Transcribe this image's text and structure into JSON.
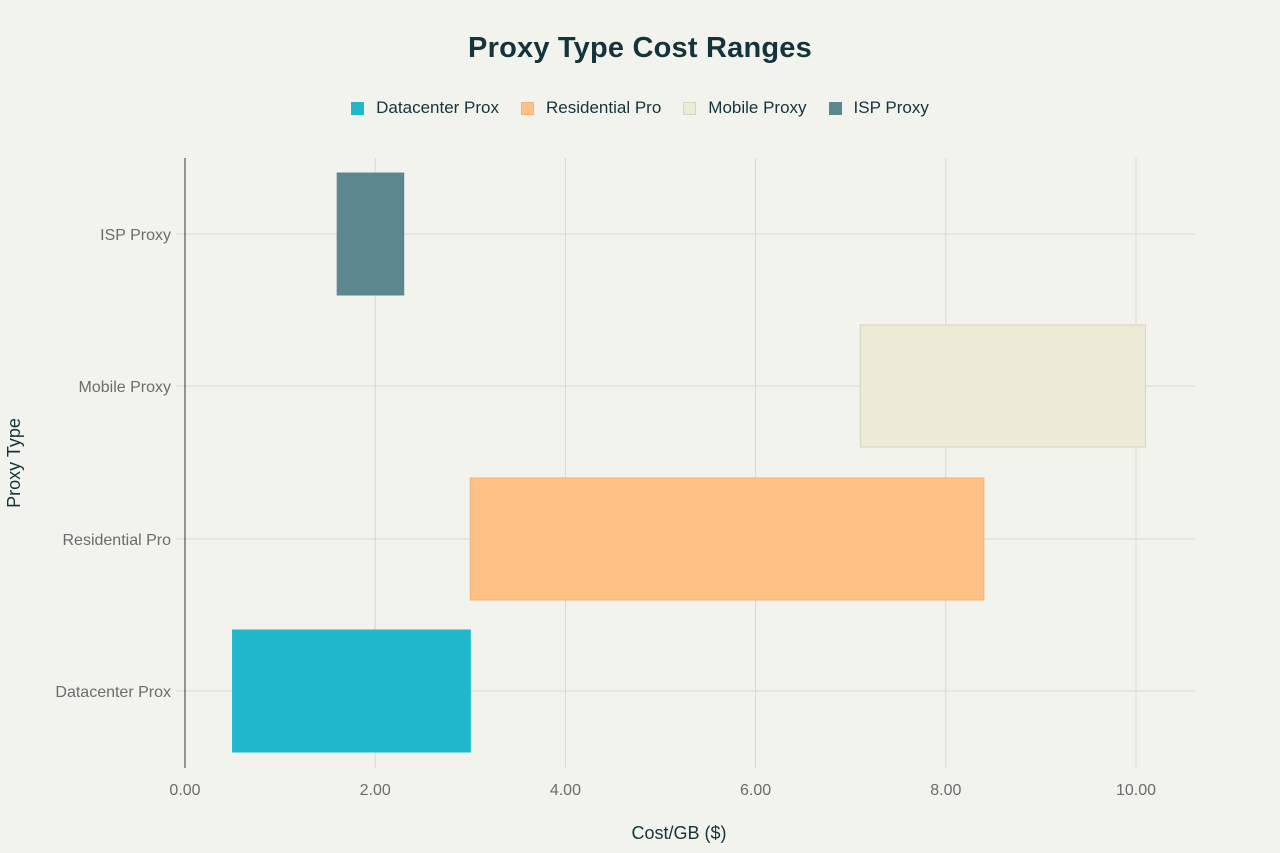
{
  "chart_data": {
    "type": "bar",
    "orientation": "horizontal",
    "range_bars": true,
    "title": "Proxy Type Cost Ranges",
    "xlabel": "Cost/GB ($)",
    "ylabel": "Proxy Type",
    "xlim": [
      0,
      10.6
    ],
    "xticks": [
      0,
      2,
      4,
      6,
      8,
      10
    ],
    "xtick_labels": [
      "0.00",
      "2.00",
      "4.00",
      "6.00",
      "8.00",
      "10.00"
    ],
    "grid": true,
    "legend_position": "top-center",
    "categories": [
      "Datacenter Prox",
      "Residential Pro",
      "Mobile Proxy",
      "ISP Proxy"
    ],
    "series": [
      {
        "name": "Datacenter Prox",
        "category": "Datacenter Prox",
        "start": 0.5,
        "end": 3.0,
        "color": "#1fb8cd",
        "border": "#1fb8cd"
      },
      {
        "name": "Residential Pro",
        "category": "Residential Pro",
        "start": 3.0,
        "end": 8.4,
        "color": "#ffc185",
        "border": "#f0b27a"
      },
      {
        "name": "Mobile Proxy",
        "category": "Mobile Proxy",
        "start": 7.1,
        "end": 10.1,
        "color": "#ecebd5",
        "border": "#d6d5bf"
      },
      {
        "name": "ISP Proxy",
        "category": "ISP Proxy",
        "start": 1.6,
        "end": 2.3,
        "color": "#5d878f",
        "border": "#5d878f"
      }
    ]
  }
}
